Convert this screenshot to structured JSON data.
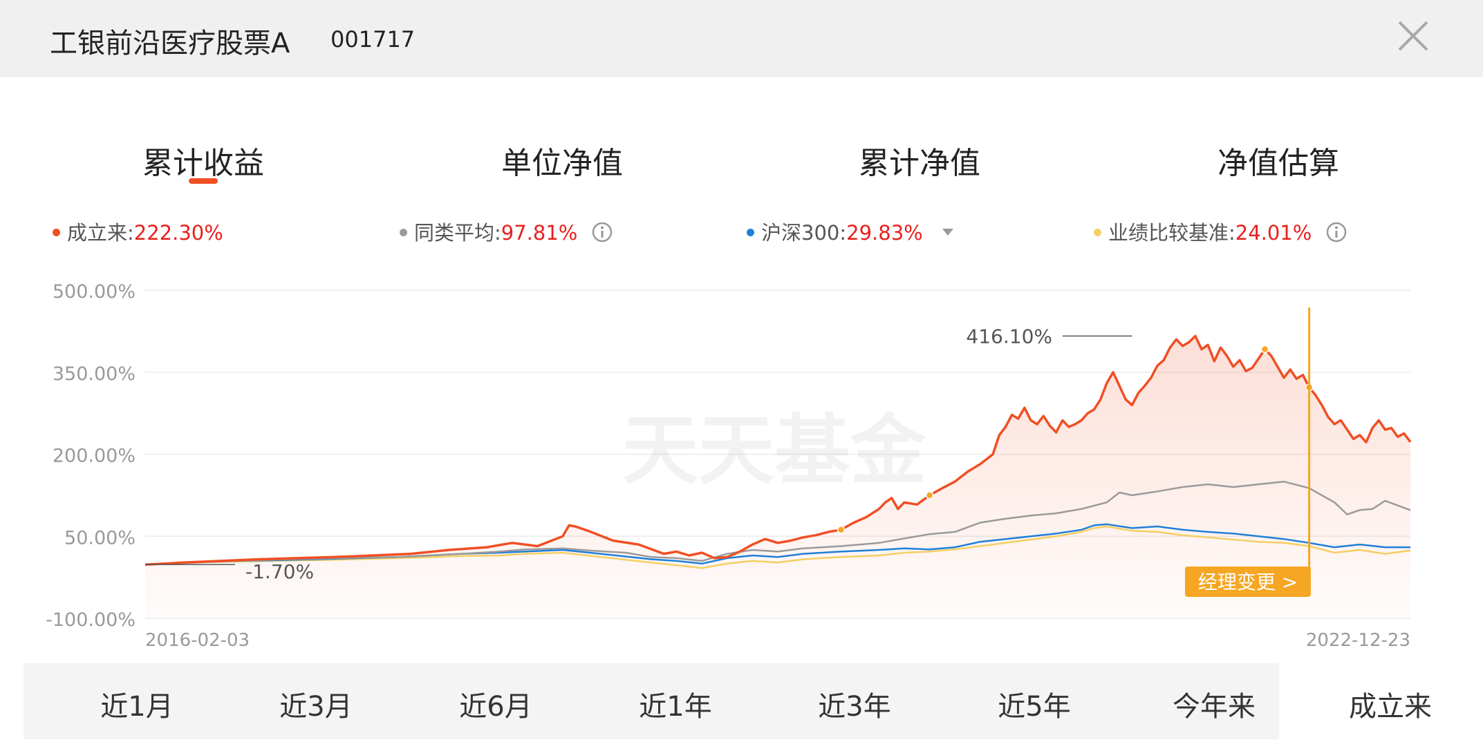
{
  "header": {
    "fund_name": "工银前沿医疗股票A",
    "fund_code": "001717"
  },
  "tabs": [
    {
      "label": "累计收益",
      "active": true
    },
    {
      "label": "单位净值",
      "active": false
    },
    {
      "label": "累计净值",
      "active": false
    },
    {
      "label": "净值估算",
      "active": false
    }
  ],
  "legend": [
    {
      "label": "成立来:",
      "value": "222.30%",
      "color": "#f04e23"
    },
    {
      "label": "同类平均:",
      "value": "97.81%",
      "color": "#9a9a9a"
    },
    {
      "label": "沪深300:",
      "value": "29.83%",
      "color": "#1e7fd8"
    },
    {
      "label": "业绩比较基准:",
      "value": "24.01%",
      "color": "#f5cf63"
    }
  ],
  "watermark": "天天基金",
  "manager_change_label": "经理变更 >",
  "chart_data": {
    "type": "line",
    "x_start": "2016-02-03",
    "x_end": "2022-12-23",
    "x_range": [
      0,
      1
    ],
    "ylim": [
      -100,
      500
    ],
    "yticks": [
      "500.00%",
      "350.00%",
      "200.00%",
      "50.00%",
      "-100.00%"
    ],
    "ytick_values": [
      500,
      350,
      200,
      50,
      -100
    ],
    "annotations": [
      {
        "text": "416.10%",
        "x": 0.78,
        "y": 416.1
      },
      {
        "text": "-1.70%",
        "x": 0.0,
        "y": -1.7
      }
    ],
    "series": [
      {
        "name": "成立来",
        "color": "#f04e23",
        "points": [
          [
            0.0,
            -1.7
          ],
          [
            0.03,
            2
          ],
          [
            0.06,
            5
          ],
          [
            0.09,
            8
          ],
          [
            0.12,
            10
          ],
          [
            0.15,
            12
          ],
          [
            0.18,
            15
          ],
          [
            0.21,
            18
          ],
          [
            0.24,
            25
          ],
          [
            0.27,
            30
          ],
          [
            0.29,
            38
          ],
          [
            0.31,
            32
          ],
          [
            0.33,
            50
          ],
          [
            0.335,
            70
          ],
          [
            0.34,
            68
          ],
          [
            0.35,
            60
          ],
          [
            0.37,
            42
          ],
          [
            0.39,
            35
          ],
          [
            0.41,
            18
          ],
          [
            0.42,
            22
          ],
          [
            0.43,
            15
          ],
          [
            0.44,
            20
          ],
          [
            0.45,
            10
          ],
          [
            0.46,
            12
          ],
          [
            0.47,
            22
          ],
          [
            0.48,
            35
          ],
          [
            0.49,
            45
          ],
          [
            0.5,
            38
          ],
          [
            0.51,
            42
          ],
          [
            0.52,
            48
          ],
          [
            0.53,
            52
          ],
          [
            0.54,
            58
          ],
          [
            0.55,
            62
          ],
          [
            0.56,
            75
          ],
          [
            0.57,
            85
          ],
          [
            0.58,
            100
          ],
          [
            0.585,
            112
          ],
          [
            0.59,
            120
          ],
          [
            0.595,
            100
          ],
          [
            0.6,
            112
          ],
          [
            0.61,
            108
          ],
          [
            0.62,
            125
          ],
          [
            0.63,
            138
          ],
          [
            0.64,
            150
          ],
          [
            0.65,
            168
          ],
          [
            0.66,
            182
          ],
          [
            0.67,
            200
          ],
          [
            0.675,
            235
          ],
          [
            0.68,
            250
          ],
          [
            0.685,
            272
          ],
          [
            0.69,
            265
          ],
          [
            0.695,
            285
          ],
          [
            0.7,
            262
          ],
          [
            0.705,
            255
          ],
          [
            0.71,
            270
          ],
          [
            0.715,
            252
          ],
          [
            0.72,
            240
          ],
          [
            0.725,
            262
          ],
          [
            0.73,
            250
          ],
          [
            0.735,
            255
          ],
          [
            0.74,
            262
          ],
          [
            0.745,
            275
          ],
          [
            0.75,
            282
          ],
          [
            0.755,
            300
          ],
          [
            0.76,
            330
          ],
          [
            0.765,
            350
          ],
          [
            0.77,
            325
          ],
          [
            0.775,
            300
          ],
          [
            0.78,
            290
          ],
          [
            0.785,
            312
          ],
          [
            0.79,
            325
          ],
          [
            0.795,
            340
          ],
          [
            0.8,
            362
          ],
          [
            0.805,
            372
          ],
          [
            0.81,
            395
          ],
          [
            0.815,
            410
          ],
          [
            0.82,
            398
          ],
          [
            0.825,
            405
          ],
          [
            0.83,
            416.1
          ],
          [
            0.835,
            392
          ],
          [
            0.84,
            400
          ],
          [
            0.845,
            370
          ],
          [
            0.85,
            395
          ],
          [
            0.855,
            380
          ],
          [
            0.86,
            360
          ],
          [
            0.865,
            372
          ],
          [
            0.87,
            352
          ],
          [
            0.875,
            358
          ],
          [
            0.88,
            375
          ],
          [
            0.885,
            392
          ],
          [
            0.89,
            380
          ],
          [
            0.895,
            360
          ],
          [
            0.9,
            340
          ],
          [
            0.905,
            355
          ],
          [
            0.91,
            338
          ],
          [
            0.915,
            345
          ],
          [
            0.92,
            322
          ],
          [
            0.925,
            308
          ],
          [
            0.93,
            290
          ],
          [
            0.935,
            268
          ],
          [
            0.94,
            255
          ],
          [
            0.945,
            262
          ],
          [
            0.95,
            245
          ],
          [
            0.955,
            228
          ],
          [
            0.96,
            235
          ],
          [
            0.965,
            222
          ],
          [
            0.97,
            248
          ],
          [
            0.975,
            262
          ],
          [
            0.98,
            245
          ],
          [
            0.985,
            248
          ],
          [
            0.99,
            232
          ],
          [
            0.995,
            238
          ],
          [
            1.0,
            222.3
          ]
        ]
      },
      {
        "name": "同类平均",
        "color": "#9a9a9a",
        "points": [
          [
            0.0,
            -1.7
          ],
          [
            0.05,
            3
          ],
          [
            0.1,
            7
          ],
          [
            0.15,
            10
          ],
          [
            0.2,
            12
          ],
          [
            0.25,
            18
          ],
          [
            0.28,
            22
          ],
          [
            0.3,
            26
          ],
          [
            0.33,
            28
          ],
          [
            0.35,
            24
          ],
          [
            0.38,
            20
          ],
          [
            0.4,
            12
          ],
          [
            0.42,
            10
          ],
          [
            0.44,
            5
          ],
          [
            0.46,
            18
          ],
          [
            0.48,
            25
          ],
          [
            0.5,
            22
          ],
          [
            0.52,
            28
          ],
          [
            0.55,
            32
          ],
          [
            0.58,
            38
          ],
          [
            0.6,
            46
          ],
          [
            0.62,
            54
          ],
          [
            0.64,
            58
          ],
          [
            0.66,
            75
          ],
          [
            0.68,
            82
          ],
          [
            0.7,
            88
          ],
          [
            0.72,
            92
          ],
          [
            0.74,
            100
          ],
          [
            0.76,
            112
          ],
          [
            0.77,
            130
          ],
          [
            0.78,
            125
          ],
          [
            0.8,
            132
          ],
          [
            0.82,
            140
          ],
          [
            0.84,
            145
          ],
          [
            0.86,
            140
          ],
          [
            0.88,
            145
          ],
          [
            0.9,
            150
          ],
          [
            0.92,
            138
          ],
          [
            0.94,
            112
          ],
          [
            0.95,
            90
          ],
          [
            0.96,
            98
          ],
          [
            0.97,
            100
          ],
          [
            0.98,
            115
          ],
          [
            1.0,
            97.81
          ]
        ]
      },
      {
        "name": "沪深300",
        "color": "#1e7fd8",
        "points": [
          [
            0.0,
            -1.7
          ],
          [
            0.05,
            4
          ],
          [
            0.1,
            6
          ],
          [
            0.15,
            9
          ],
          [
            0.2,
            12
          ],
          [
            0.25,
            18
          ],
          [
            0.28,
            20
          ],
          [
            0.3,
            22
          ],
          [
            0.33,
            25
          ],
          [
            0.36,
            18
          ],
          [
            0.4,
            8
          ],
          [
            0.42,
            5
          ],
          [
            0.44,
            0
          ],
          [
            0.46,
            10
          ],
          [
            0.48,
            15
          ],
          [
            0.5,
            12
          ],
          [
            0.52,
            18
          ],
          [
            0.55,
            22
          ],
          [
            0.58,
            25
          ],
          [
            0.6,
            28
          ],
          [
            0.62,
            26
          ],
          [
            0.64,
            30
          ],
          [
            0.66,
            40
          ],
          [
            0.68,
            45
          ],
          [
            0.7,
            50
          ],
          [
            0.72,
            55
          ],
          [
            0.74,
            62
          ],
          [
            0.75,
            70
          ],
          [
            0.76,
            72
          ],
          [
            0.78,
            65
          ],
          [
            0.8,
            68
          ],
          [
            0.82,
            62
          ],
          [
            0.84,
            58
          ],
          [
            0.86,
            55
          ],
          [
            0.88,
            50
          ],
          [
            0.9,
            45
          ],
          [
            0.92,
            38
          ],
          [
            0.94,
            30
          ],
          [
            0.96,
            35
          ],
          [
            0.98,
            30
          ],
          [
            1.0,
            29.83
          ]
        ]
      },
      {
        "name": "业绩比较基准",
        "color": "#f5cf63",
        "points": [
          [
            0.0,
            -1.7
          ],
          [
            0.05,
            3
          ],
          [
            0.1,
            5
          ],
          [
            0.15,
            7
          ],
          [
            0.2,
            10
          ],
          [
            0.25,
            14
          ],
          [
            0.28,
            15
          ],
          [
            0.3,
            18
          ],
          [
            0.33,
            20
          ],
          [
            0.36,
            12
          ],
          [
            0.4,
            2
          ],
          [
            0.42,
            -3
          ],
          [
            0.44,
            -8
          ],
          [
            0.46,
            0
          ],
          [
            0.48,
            5
          ],
          [
            0.5,
            2
          ],
          [
            0.52,
            8
          ],
          [
            0.55,
            12
          ],
          [
            0.58,
            15
          ],
          [
            0.6,
            20
          ],
          [
            0.62,
            22
          ],
          [
            0.64,
            26
          ],
          [
            0.66,
            32
          ],
          [
            0.68,
            38
          ],
          [
            0.7,
            44
          ],
          [
            0.72,
            50
          ],
          [
            0.74,
            58
          ],
          [
            0.75,
            65
          ],
          [
            0.76,
            68
          ],
          [
            0.78,
            60
          ],
          [
            0.8,
            58
          ],
          [
            0.82,
            52
          ],
          [
            0.84,
            48
          ],
          [
            0.86,
            44
          ],
          [
            0.88,
            40
          ],
          [
            0.9,
            38
          ],
          [
            0.92,
            32
          ],
          [
            0.94,
            20
          ],
          [
            0.96,
            25
          ],
          [
            0.98,
            18
          ],
          [
            1.0,
            24.01
          ]
        ]
      }
    ]
  },
  "periods": [
    {
      "label": "近1月",
      "active": false
    },
    {
      "label": "近3月",
      "active": false
    },
    {
      "label": "近6月",
      "active": false
    },
    {
      "label": "近1年",
      "active": false
    },
    {
      "label": "近3年",
      "active": false
    },
    {
      "label": "近5年",
      "active": false
    },
    {
      "label": "今年来",
      "active": false
    },
    {
      "label": "成立来",
      "active": true
    }
  ]
}
